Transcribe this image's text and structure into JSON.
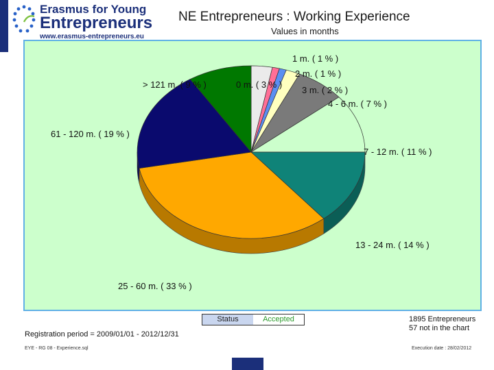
{
  "header": {
    "logo_line1": "Erasmus for Young",
    "logo_line2": "Entrepreneurs",
    "logo_url": "www.erasmus-entrepreneurs.eu",
    "logo_icon": "eu-stars-icon"
  },
  "title": "NE Entrepreneurs : Working Experience",
  "subtitle": "Values in months",
  "chart_data": {
    "type": "pie",
    "title": "NE Entrepreneurs : Working Experience",
    "subtitle": "Values in months",
    "slices": [
      {
        "label": "0 m.  ( 3 % )",
        "value": 3,
        "color": "#ebebeb"
      },
      {
        "label": "1 m.  ( 1 % )",
        "value": 1,
        "color": "#ff6f96"
      },
      {
        "label": "2 m.  ( 1 % )",
        "value": 1,
        "color": "#5b8ef2"
      },
      {
        "label": "3 m.  ( 2 % )",
        "value": 2,
        "color": "#ffffbf"
      },
      {
        "label": "4 - 6 m.  ( 7 % )",
        "value": 7,
        "color": "#7a7a7a"
      },
      {
        "label": "7 - 12 m.  ( 11 % )",
        "value": 11,
        "color": "#ccffcc"
      },
      {
        "label": "13 - 24 m.  ( 14 % )",
        "value": 14,
        "color": "#0f8378"
      },
      {
        "label": "25 - 60 m.  ( 33 % )",
        "value": 33,
        "color": "#ffa800"
      },
      {
        "label": "61 - 120 m.  ( 19 % )",
        "value": 19,
        "color": "#0a0a6e"
      },
      {
        "label": "> 121 m.  ( 9 % )",
        "value": 9,
        "color": "#007800"
      }
    ]
  },
  "status": {
    "label": "Status",
    "value": "Accepted"
  },
  "totals": {
    "line1": "1895  Entrepreneurs",
    "line2": "57  not in the chart"
  },
  "registration": "Registration period = 2009/01/01 - 2012/12/31",
  "footer": {
    "left": "EYE - RG 08 - Experience.sql",
    "right": "Execution date : 28/02/2012"
  }
}
